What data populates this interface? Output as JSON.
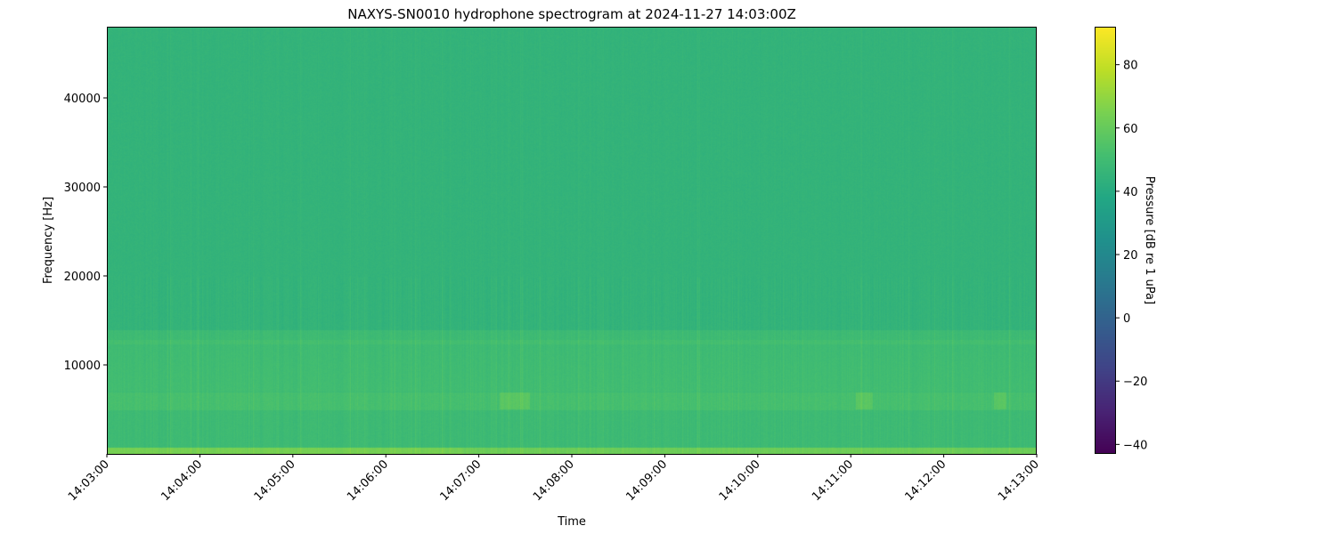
{
  "chart_data": {
    "type": "heatmap",
    "title": "NAXYS-SN0010 hydrophone spectrogram at 2024-11-27 14:03:00Z",
    "xlabel": "Time",
    "ylabel": "Frequency [Hz]",
    "x_ticks": [
      "14:03:00",
      "14:04:00",
      "14:05:00",
      "14:06:00",
      "14:07:00",
      "14:08:00",
      "14:09:00",
      "14:10:00",
      "14:11:00",
      "14:12:00",
      "14:13:00"
    ],
    "y_ticks": [
      10000,
      20000,
      30000,
      40000
    ],
    "y_tick_labels": [
      "10000",
      "20000",
      "30000",
      "40000"
    ],
    "ylim": [
      0,
      48000
    ],
    "colormap": "viridis",
    "colorbar": {
      "label": "Pressure [dB re 1 uPa]",
      "range": [
        -43,
        92
      ],
      "ticks": [
        -40,
        -20,
        0,
        20,
        40,
        60,
        80
      ],
      "tick_labels": [
        "−40",
        "−20",
        "0",
        "20",
        "40",
        "60",
        "80"
      ]
    },
    "approx_levels_db": [
      {
        "freq_hz": [
          0,
          800
        ],
        "level": 62
      },
      {
        "freq_hz": [
          800,
          5000
        ],
        "level": 49
      },
      {
        "freq_hz": [
          5000,
          7000
        ],
        "level": 52
      },
      {
        "freq_hz": [
          7000,
          14000
        ],
        "level": 49
      },
      {
        "freq_hz": [
          14000,
          48000
        ],
        "level": 45
      }
    ]
  }
}
